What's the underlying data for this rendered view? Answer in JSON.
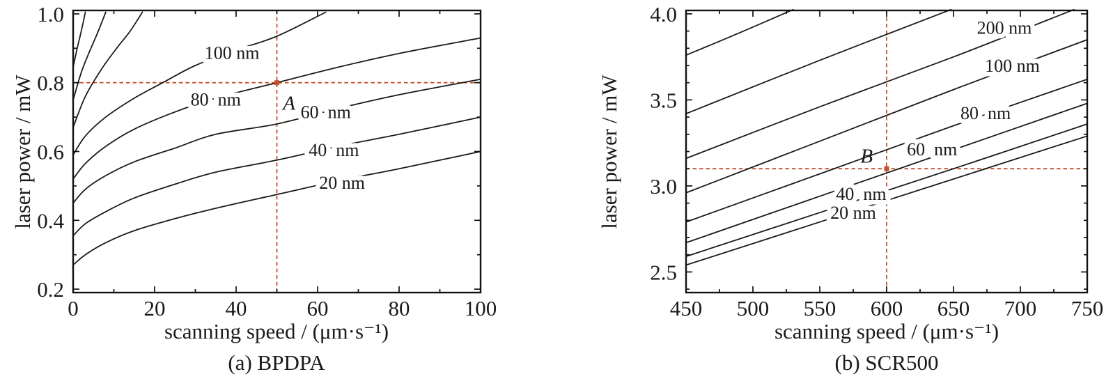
{
  "colors": {
    "curve": "#1a1a1a",
    "axis": "#111111",
    "crosshair": "#c4502e",
    "background": "#ffffff"
  },
  "chart_data": [
    {
      "panel": "a",
      "type": "line",
      "caption": "(a) BPDPA",
      "xlabel": "scanning speed / (μm·s⁻¹)",
      "ylabel": "laser power / mW",
      "xlim": [
        0,
        100
      ],
      "ylim": [
        0.19,
        1.01
      ],
      "grid": false,
      "x_ticks": {
        "values": [
          0,
          20,
          40,
          60,
          80,
          100
        ],
        "labels": [
          "0",
          "20",
          "40",
          "60",
          "80",
          "100"
        ]
      },
      "x_minor_ticks": [
        10,
        30,
        50,
        70,
        90
      ],
      "y_ticks": {
        "values": [
          0.2,
          0.4,
          0.6,
          0.8,
          1.0
        ],
        "labels": [
          "0.2",
          "0.4",
          "0.6",
          "0.8",
          "1.0"
        ]
      },
      "y_minor_ticks": [
        0.3,
        0.5,
        0.7,
        0.9
      ],
      "series": [
        {
          "name": "linewidth 20 nm",
          "label": "20 nm",
          "label_at": [
            66,
            0.51
          ],
          "points": [
            [
              0,
              0.27
            ],
            [
              3,
              0.3
            ],
            [
              8,
              0.335
            ],
            [
              15,
              0.37
            ],
            [
              25,
              0.405
            ],
            [
              35,
              0.435
            ],
            [
              50,
              0.475
            ],
            [
              65,
              0.515
            ],
            [
              80,
              0.55
            ],
            [
              100,
              0.6
            ]
          ]
        },
        {
          "name": "linewidth 40 nm",
          "label": "40  nm",
          "label_at": [
            64,
            0.605
          ],
          "points": [
            [
              0,
              0.355
            ],
            [
              3,
              0.39
            ],
            [
              8,
              0.425
            ],
            [
              15,
              0.465
            ],
            [
              25,
              0.505
            ],
            [
              35,
              0.54
            ],
            [
              50,
              0.575
            ],
            [
              65,
              0.615
            ],
            [
              80,
              0.65
            ],
            [
              100,
              0.7
            ]
          ]
        },
        {
          "name": "linewidth 60 nm",
          "label": "60  nm",
          "label_at": [
            62,
            0.715
          ],
          "points": [
            [
              0,
              0.45
            ],
            [
              3,
              0.49
            ],
            [
              8,
              0.53
            ],
            [
              15,
              0.57
            ],
            [
              25,
              0.61
            ],
            [
              35,
              0.65
            ],
            [
              50,
              0.68
            ],
            [
              65,
              0.725
            ],
            [
              80,
              0.765
            ],
            [
              100,
              0.81
            ]
          ]
        },
        {
          "name": "linewidth 80 nm",
          "label": "80  nm",
          "label_at": [
            35,
            0.752
          ],
          "points": [
            [
              0,
              0.52
            ],
            [
              3,
              0.565
            ],
            [
              8,
              0.615
            ],
            [
              15,
              0.665
            ],
            [
              25,
              0.715
            ],
            [
              35,
              0.755
            ],
            [
              50,
              0.8
            ],
            [
              65,
              0.845
            ],
            [
              80,
              0.885
            ],
            [
              100,
              0.93
            ]
          ]
        },
        {
          "name": "linewidth 100 nm",
          "label": "100 nm",
          "label_at": [
            39,
            0.888
          ],
          "points": [
            [
              0,
              0.59
            ],
            [
              3,
              0.645
            ],
            [
              8,
              0.7
            ],
            [
              15,
              0.755
            ],
            [
              22,
              0.8
            ],
            [
              30,
              0.85
            ],
            [
              40,
              0.895
            ],
            [
              50,
              0.935
            ],
            [
              62,
              1.005
            ]
          ]
        },
        {
          "name": "unlabeled upper contour 1",
          "label": "",
          "points": [
            [
              0,
              0.67
            ],
            [
              3,
              0.76
            ],
            [
              7,
              0.84
            ],
            [
              11,
              0.905
            ],
            [
              14,
              0.95
            ],
            [
              17,
              1.005
            ]
          ]
        },
        {
          "name": "unlabeled upper contour 2",
          "label": "",
          "points": [
            [
              0,
              0.75
            ],
            [
              2,
              0.83
            ],
            [
              4,
              0.89
            ],
            [
              6,
              0.945
            ],
            [
              8,
              1.005
            ]
          ]
        },
        {
          "name": "unlabeled upper contour 3",
          "label": "",
          "points": [
            [
              0,
              0.845
            ],
            [
              1,
              0.9
            ],
            [
              2,
              0.95
            ],
            [
              3,
              1.005
            ]
          ]
        }
      ],
      "crosshair": {
        "x": 50,
        "y": 0.8,
        "point_label": "A",
        "point_label_at": [
          53,
          0.742
        ]
      }
    },
    {
      "panel": "b",
      "type": "line",
      "caption": "(b) SCR500",
      "xlabel": "scanning speed / (μm·s⁻¹)",
      "ylabel": "laser power / mW",
      "xlim": [
        450,
        750
      ],
      "ylim": [
        2.38,
        4.02
      ],
      "grid": false,
      "x_ticks": {
        "values": [
          450,
          500,
          550,
          600,
          650,
          700,
          750
        ],
        "labels": [
          "450",
          "500",
          "550",
          "600",
          "650",
          "700",
          "750"
        ]
      },
      "x_minor_ticks": [
        475,
        525,
        575,
        625,
        675,
        725
      ],
      "y_ticks": {
        "values": [
          2.5,
          3.0,
          3.5,
          4.0
        ],
        "labels": [
          "2.5",
          "3.0",
          "3.5",
          "4.0"
        ]
      },
      "y_minor_ticks": [
        2.4,
        2.6,
        2.7,
        2.8,
        2.9,
        3.1,
        3.2,
        3.3,
        3.4,
        3.6,
        3.7,
        3.8,
        3.9
      ],
      "series": [
        {
          "name": "linewidth 20 nm",
          "label": "20 nm",
          "label_at": [
            575,
            2.845
          ],
          "points": [
            [
              450,
              2.54
            ],
            [
              550,
              2.79
            ],
            [
              650,
              3.04
            ],
            [
              750,
              3.29
            ]
          ]
        },
        {
          "name": "linewidth 40 nm",
          "label": "40  nm",
          "label_at": [
            581,
            2.955
          ],
          "points": [
            [
              450,
              2.59
            ],
            [
              550,
              2.845
            ],
            [
              650,
              3.1
            ],
            [
              750,
              3.36
            ]
          ]
        },
        {
          "name": "linewidth 60 nm",
          "label": "60  nm",
          "label_at": [
            634,
            3.215
          ],
          "points": [
            [
              450,
              2.67
            ],
            [
              550,
              2.94
            ],
            [
              650,
              3.21
            ],
            [
              750,
              3.48
            ]
          ]
        },
        {
          "name": "linewidth 80 nm",
          "label": "80  nm",
          "label_at": [
            674,
            3.425
          ],
          "points": [
            [
              450,
              2.79
            ],
            [
              550,
              3.07
            ],
            [
              650,
              3.35
            ],
            [
              750,
              3.62
            ]
          ]
        },
        {
          "name": "linewidth 100 nm",
          "label": "100 nm",
          "label_at": [
            694,
            3.7
          ],
          "points": [
            [
              450,
              2.96
            ],
            [
              550,
              3.26
            ],
            [
              650,
              3.56
            ],
            [
              750,
              3.85
            ]
          ]
        },
        {
          "name": "linewidth 200 nm",
          "label": "200 nm",
          "label_at": [
            688,
            3.92
          ],
          "points": [
            [
              450,
              3.16
            ],
            [
              550,
              3.46
            ],
            [
              650,
              3.75
            ],
            [
              740,
              4.025
            ]
          ]
        },
        {
          "name": "unlabeled upper contour 1",
          "label": "",
          "points": [
            [
              450,
              3.42
            ],
            [
              550,
              3.73
            ],
            [
              648,
              4.025
            ]
          ]
        },
        {
          "name": "unlabeled upper contour 2",
          "label": "",
          "points": [
            [
              450,
              3.76
            ],
            [
              490,
              3.89
            ],
            [
              530,
              4.025
            ]
          ]
        }
      ],
      "crosshair": {
        "x": 600,
        "y": 3.1,
        "point_label": "B",
        "point_label_at": [
          585,
          3.175
        ]
      }
    }
  ]
}
